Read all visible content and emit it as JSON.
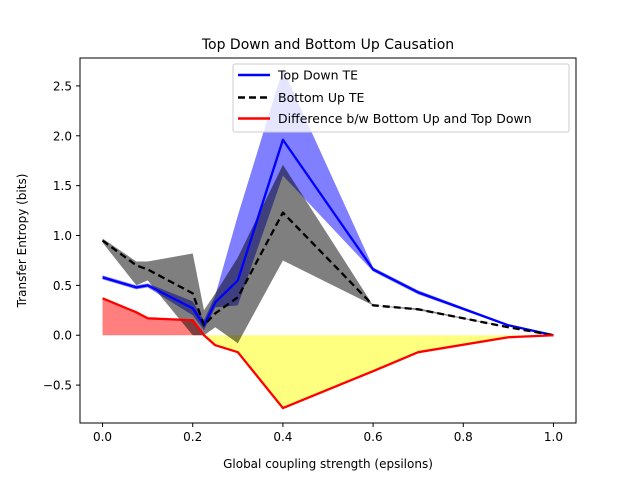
{
  "chart_data": {
    "type": "line",
    "title": "Top Down and Bottom Up Causation",
    "xlabel": "Global coupling strength (epsilons)",
    "ylabel": "Transfer Entropy (bits)",
    "xlim": [
      -0.05,
      1.05
    ],
    "ylim": [
      -0.88,
      2.78
    ],
    "xticks": [
      0.0,
      0.2,
      0.4,
      0.6,
      0.8,
      1.0
    ],
    "xtick_labels": [
      "0.0",
      "0.2",
      "0.4",
      "0.6",
      "0.8",
      "1.0"
    ],
    "yticks": [
      -0.5,
      0.0,
      0.5,
      1.0,
      1.5,
      2.0,
      2.5
    ],
    "ytick_labels": [
      "−0.5",
      "0.0",
      "0.5",
      "1.0",
      "1.5",
      "2.0",
      "2.5"
    ],
    "grid": false,
    "legend_position": "top-right",
    "x": [
      0.0,
      0.075,
      0.1,
      0.2,
      0.225,
      0.25,
      0.3,
      0.4,
      0.6,
      0.7,
      0.9,
      1.0
    ],
    "series": [
      {
        "name": "Top Down TE",
        "color": "#0000ff",
        "line_style": "solid",
        "values": [
          0.58,
          0.48,
          0.5,
          0.27,
          0.1,
          0.33,
          0.55,
          1.96,
          0.66,
          0.43,
          0.1,
          0.0
        ],
        "band_low": [
          0.56,
          0.46,
          0.48,
          0.2,
          0.05,
          0.28,
          0.3,
          1.6,
          0.64,
          0.41,
          0.09,
          0.0
        ],
        "band_high": [
          0.6,
          0.5,
          0.52,
          0.34,
          0.15,
          0.4,
          1.2,
          2.67,
          0.68,
          0.45,
          0.11,
          0.0
        ],
        "band_color": "#0000ff"
      },
      {
        "name": "Bottom Up TE",
        "color": "#000000",
        "line_style": "dashed",
        "values": [
          0.95,
          0.7,
          0.66,
          0.42,
          0.1,
          0.22,
          0.38,
          1.23,
          0.3,
          0.26,
          0.08,
          0.0
        ],
        "band_low": [
          0.93,
          0.5,
          0.55,
          0.0,
          0.0,
          0.08,
          -0.08,
          0.75,
          0.3,
          0.25,
          0.08,
          0.0
        ],
        "band_high": [
          0.97,
          0.74,
          0.74,
          0.82,
          0.25,
          0.42,
          0.78,
          1.71,
          0.3,
          0.27,
          0.08,
          0.0
        ],
        "band_color": "#000000"
      },
      {
        "name": "Difference b/w Bottom Up and Top Down",
        "color": "#ff0000",
        "line_style": "solid",
        "values": [
          0.37,
          0.23,
          0.17,
          0.15,
          0.0,
          -0.1,
          -0.17,
          -0.73,
          -0.36,
          -0.17,
          -0.02,
          0.0
        ]
      }
    ],
    "fills": [
      {
        "color": "#ff0000",
        "where": "difference above zero"
      },
      {
        "color": "#ffff00",
        "where": "difference below zero"
      }
    ]
  }
}
